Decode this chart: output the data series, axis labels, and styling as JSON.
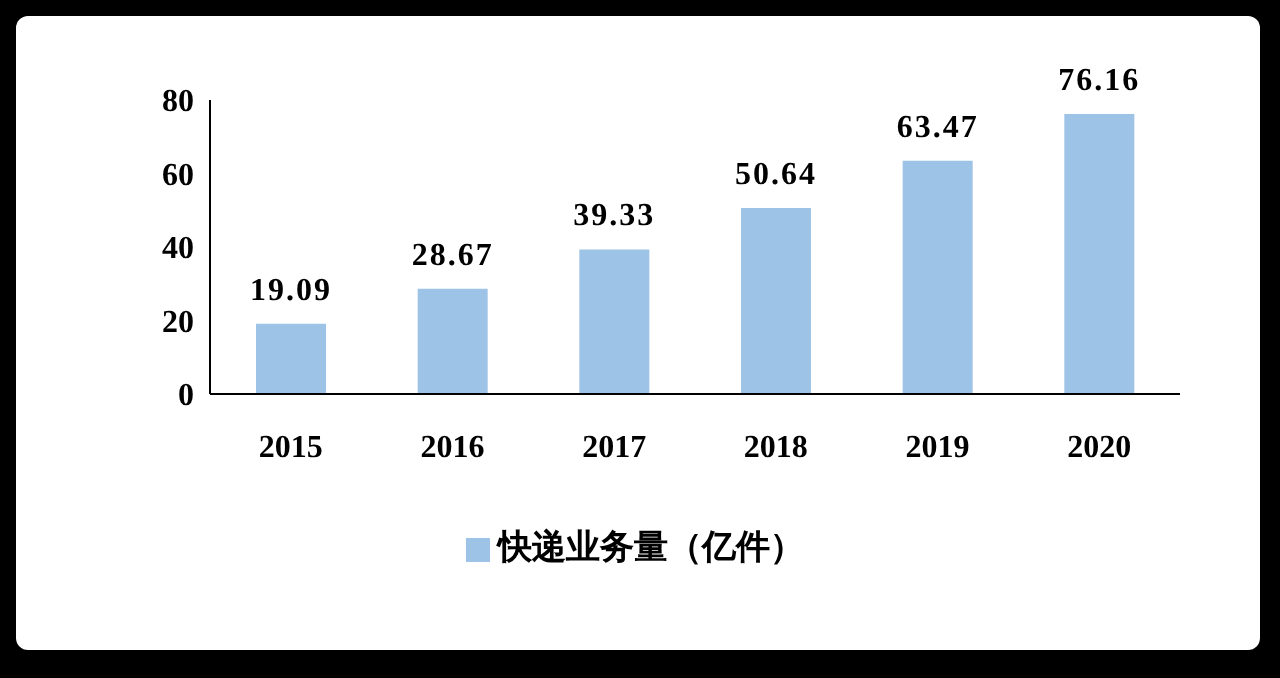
{
  "chart_data": {
    "type": "bar",
    "categories": [
      "2015",
      "2016",
      "2017",
      "2018",
      "2019",
      "2020"
    ],
    "series": [
      {
        "name": "快递业务量（亿件）",
        "color": "#9dc3e6",
        "values": [
          19.09,
          28.67,
          39.33,
          50.64,
          63.47,
          76.16
        ]
      }
    ],
    "ylim": [
      0,
      80
    ],
    "yticks": [
      0,
      20,
      40,
      60,
      80
    ],
    "data_labels": true,
    "legend": "bottom",
    "grid": false
  }
}
